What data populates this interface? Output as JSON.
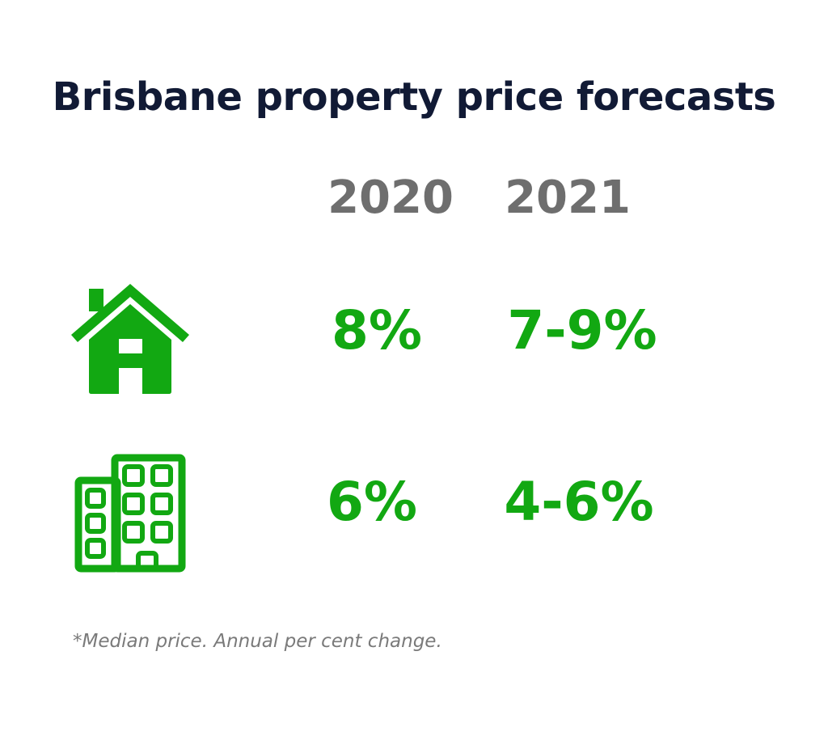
{
  "title": "Brisbane property price forecasts",
  "columns": [
    "2020",
    "2021"
  ],
  "rows": [
    {
      "icon": "house-icon",
      "values": [
        "8%",
        "7-9%"
      ]
    },
    {
      "icon": "apartment-building-icon",
      "values": [
        "6%",
        "4-6%"
      ]
    }
  ],
  "footnote": "*Median price. Annual per cent change.",
  "colors": {
    "title": "#111a35",
    "years": "#6e6e6e",
    "values": "#12a812",
    "icons": "#12a812"
  }
}
